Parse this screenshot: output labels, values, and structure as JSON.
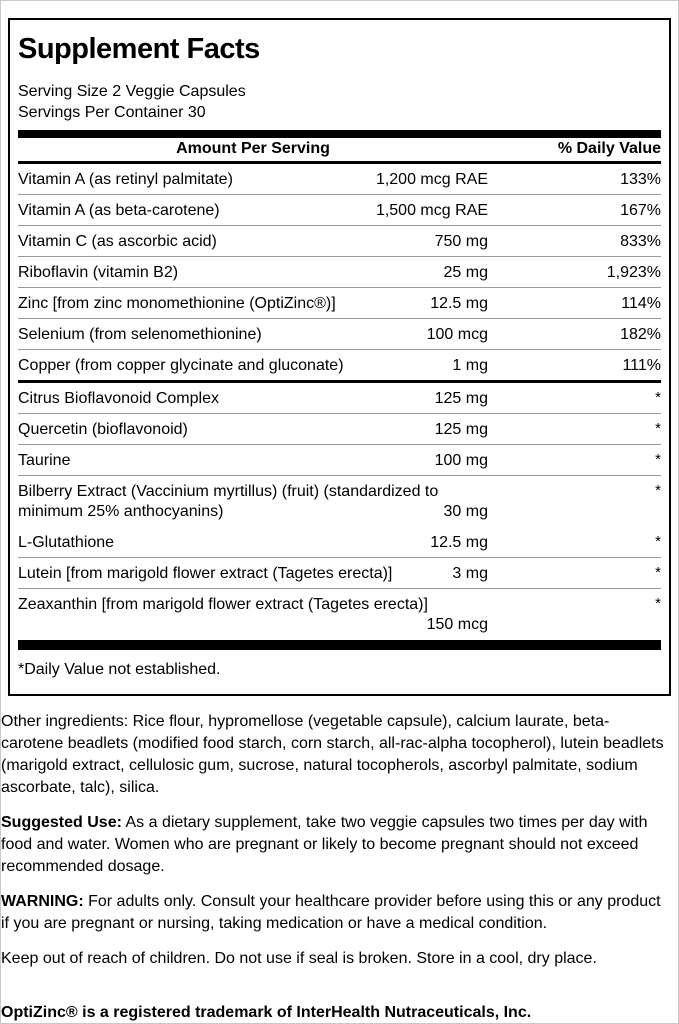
{
  "label": {
    "title": "Supplement Facts",
    "serving_size": "Serving Size 2 Veggie Capsules",
    "servings_per_container": "Servings Per Container 30",
    "columns": {
      "amount": "Amount Per Serving",
      "daily_value": "% Daily Value"
    },
    "rows": [
      {
        "name": "Vitamin A (as retinyl palmitate)",
        "amount": "1,200 mcg RAE",
        "dv": "133%"
      },
      {
        "name": "Vitamin A (as beta-carotene)",
        "amount": "1,500 mcg RAE",
        "dv": "167%"
      },
      {
        "name": "Vitamin C (as ascorbic acid)",
        "amount": "750 mg",
        "dv": "833%"
      },
      {
        "name": "Riboflavin (vitamin B2)",
        "amount": "25 mg",
        "dv": "1,923%"
      },
      {
        "name": "Zinc [from zinc monomethionine (OptiZinc®)]",
        "amount": "12.5 mg",
        "dv": "114%"
      },
      {
        "name": "Selenium (from selenomethionine)",
        "amount": "100 mcg",
        "dv": "182%"
      },
      {
        "name": "Copper (from copper glycinate and gluconate)",
        "amount": "1 mg",
        "dv": "111%"
      },
      {
        "name": "Citrus Bioflavonoid Complex",
        "amount": "125 mg",
        "dv": "*"
      },
      {
        "name": "Quercetin (bioflavonoid)",
        "amount": "125 mg",
        "dv": "*"
      },
      {
        "name": "Taurine",
        "amount": "100 mg",
        "dv": "*"
      },
      {
        "name": "Bilberry Extract (Vaccinium myrtillus) (fruit) (standardized to",
        "name2": "minimum 25% anthocyanins)",
        "amount": "30 mg",
        "dv": "*"
      },
      {
        "name": "L-Glutathione",
        "amount": "12.5 mg",
        "dv": "*"
      },
      {
        "name": "Lutein [from marigold flower extract (Tagetes erecta)]",
        "amount": "3 mg",
        "dv": "*"
      },
      {
        "name": "Zeaxanthin [from marigold flower extract (Tagetes erecta)]",
        "name2": "",
        "amount": "150 mcg",
        "dv": "*"
      }
    ],
    "footnote": "*Daily Value not established."
  },
  "info": {
    "other_ingredients": "Other ingredients: Rice flour, hypromellose (vegetable capsule), calcium laurate, beta-carotene beadlets (modified food starch, corn starch, all-rac-alpha tocopherol), lutein beadlets (marigold extract, cellulosic gum, sucrose, natural tocopherols, ascorbyl palmitate, sodium ascorbate, talc), silica.",
    "suggested_use_label": "Suggested Use:",
    "suggested_use_text": " As a dietary supplement, take two veggie capsules two times per day with food and water. Women who are pregnant or likely to become pregnant should not exceed recommended dosage.",
    "warning_label": "WARNING:",
    "warning_text": " For adults only. Consult your healthcare provider before using this or any product if you are pregnant or nursing, taking medication or have a medical condition.",
    "storage": "Keep out of reach of children. Do not use if seal is broken. Store in a cool, dry place.",
    "trademark": "OptiZinc® is a registered trademark of InterHealth Nutraceuticals, Inc."
  },
  "colors": {
    "text": "#000000",
    "background": "#ffffff",
    "heavy_rule": "#000000",
    "thin_rule": "#999999"
  }
}
